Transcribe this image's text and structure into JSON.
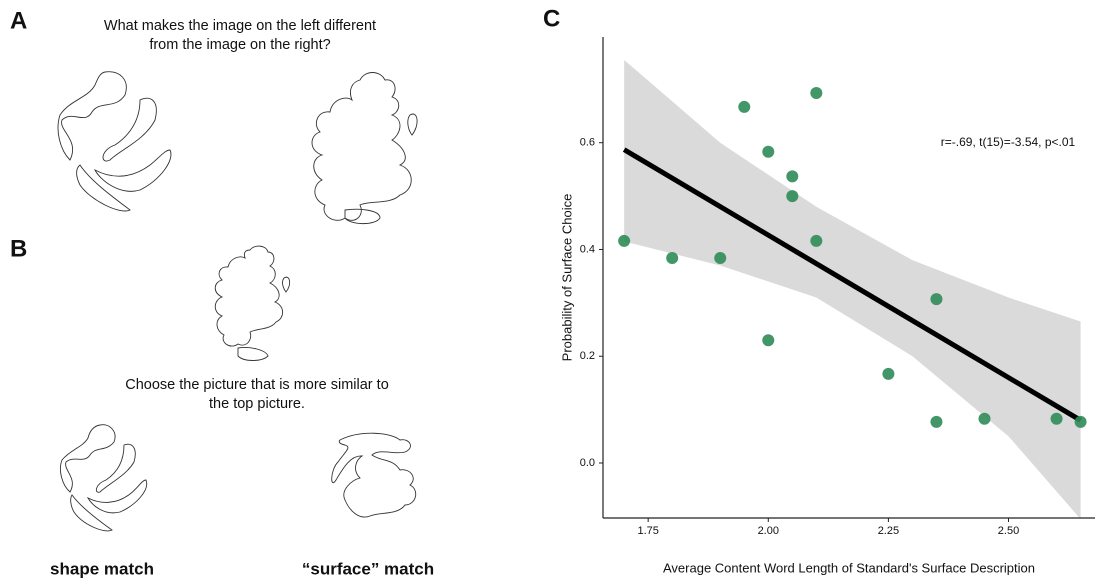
{
  "panels": {
    "a": {
      "label": "A",
      "prompt_line1": "What makes the image on the left different",
      "prompt_line2": "from the image on the right?"
    },
    "b": {
      "label": "B",
      "prompt_line1": "Choose the picture that is more similar to",
      "prompt_line2": "the top picture.",
      "left_caption": "shape match",
      "right_caption": "“surface” match"
    },
    "c": {
      "label": "C"
    }
  },
  "chart_data": {
    "type": "scatter",
    "xlabel": "Average Content Word Length of Standard's Surface Description",
    "ylabel": "Probability of Surface Choice",
    "annotation": "r=-.69, t(15)=-3.54, p<.01",
    "x": [
      1.7,
      1.8,
      1.9,
      1.95,
      2.0,
      2.0,
      2.05,
      2.05,
      2.1,
      2.1,
      2.25,
      2.35,
      2.35,
      2.45,
      2.6,
      2.65
    ],
    "values": [
      0.416,
      0.384,
      0.384,
      0.667,
      0.583,
      0.23,
      0.537,
      0.5,
      0.693,
      0.416,
      0.167,
      0.307,
      0.077,
      0.083,
      0.083,
      0.077
    ],
    "color": "#2e8b57",
    "fit": {
      "x": [
        1.7,
        2.65
      ],
      "y": [
        0.587,
        0.08
      ],
      "color": "#000000"
    },
    "band": {
      "x": [
        1.7,
        1.9,
        2.1,
        2.3,
        2.5,
        2.65
      ],
      "upper": [
        0.755,
        0.6,
        0.48,
        0.38,
        0.31,
        0.265
      ],
      "lower": [
        0.415,
        0.37,
        0.31,
        0.2,
        0.05,
        -0.105
      ],
      "color": "#d3d3d3"
    },
    "xlim": [
      1.656,
      2.68
    ],
    "ylim": [
      -0.103,
      0.798
    ],
    "xticks": [
      1.75,
      {
        "value": 2,
        "label": "2.00"
      },
      2.25,
      {
        "value": 2.5,
        "label": "2.50"
      }
    ],
    "yticks": [
      {
        "value": 0,
        "label": "0.0"
      },
      0.2,
      0.4,
      0.6
    ]
  }
}
